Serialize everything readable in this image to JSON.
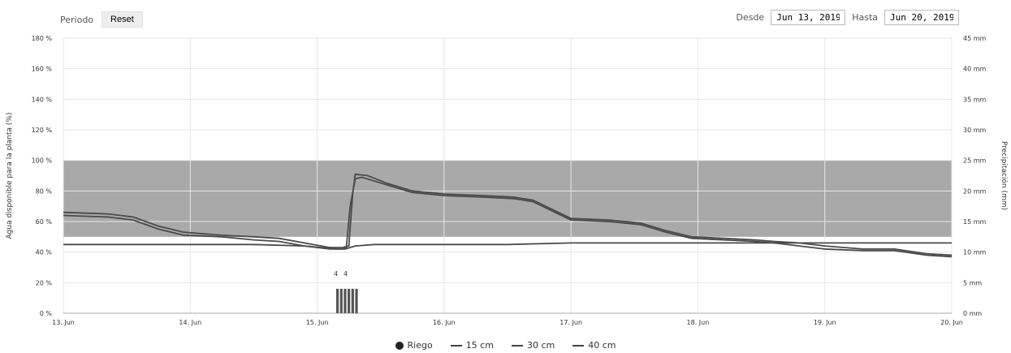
{
  "toolbar": {
    "period_label": "Periodo",
    "reset_label": "Reset",
    "from_label": "Desde",
    "from_value": "Jun 13, 2019",
    "to_label": "Hasta",
    "to_value": "Jun 20, 2019"
  },
  "legend": {
    "items": [
      {
        "label": "Riego",
        "symbol": "dot"
      },
      {
        "label": "15 cm",
        "symbol": "line"
      },
      {
        "label": "30 cm",
        "symbol": "line"
      },
      {
        "label": "40 cm",
        "symbol": "line"
      }
    ]
  },
  "colors": {
    "band": "#8c8c8c",
    "series": "#4a4a4a",
    "grid": "#e6e6e6",
    "bars": "#555555"
  },
  "chart_data": {
    "type": "line",
    "xlabel": "",
    "ylabel": "Agua disponible para la planta (%)",
    "y2label": "Precipitación (mm)",
    "x_ticks": [
      "13. Jun",
      "14. Jun",
      "15. Jun",
      "16. Jun",
      "17. Jun",
      "18. Jun",
      "19. Jun",
      "20. Jun"
    ],
    "y_ticks": [
      "0 %",
      "20 %",
      "40 %",
      "60 %",
      "80 %",
      "100 %",
      "120 %",
      "140 %",
      "160 %",
      "180 %"
    ],
    "y2_ticks": [
      "0 mm",
      "5 mm",
      "10 mm",
      "15 mm",
      "20 mm",
      "25 mm",
      "30 mm",
      "35 mm",
      "40 mm",
      "45 mm"
    ],
    "ylim": [
      0,
      180
    ],
    "y2lim": [
      0,
      45
    ],
    "xlim": [
      13,
      20
    ],
    "optimal_band": [
      50,
      100
    ],
    "grid": true,
    "legend_position": "bottom",
    "series": [
      {
        "name": "15 cm",
        "points": [
          [
            13.0,
            66
          ],
          [
            13.35,
            65
          ],
          [
            13.55,
            63
          ],
          [
            13.75,
            57
          ],
          [
            13.95,
            53
          ],
          [
            14.25,
            51
          ],
          [
            14.5,
            50
          ],
          [
            14.7,
            49
          ],
          [
            14.9,
            46
          ],
          [
            15.1,
            43
          ],
          [
            15.2,
            43
          ],
          [
            15.25,
            44
          ],
          [
            15.28,
            78
          ],
          [
            15.3,
            91
          ],
          [
            15.4,
            90
          ],
          [
            15.55,
            85
          ],
          [
            15.75,
            80
          ],
          [
            16.0,
            78
          ],
          [
            16.3,
            77
          ],
          [
            16.55,
            76
          ],
          [
            16.7,
            74
          ],
          [
            16.85,
            68
          ],
          [
            17.0,
            62
          ],
          [
            17.3,
            61
          ],
          [
            17.55,
            59
          ],
          [
            17.75,
            54
          ],
          [
            17.95,
            50
          ],
          [
            18.2,
            49
          ],
          [
            18.45,
            48
          ],
          [
            18.6,
            47
          ],
          [
            18.8,
            46
          ],
          [
            19.0,
            44
          ],
          [
            19.3,
            42
          ],
          [
            19.55,
            42
          ],
          [
            19.8,
            39
          ],
          [
            20.0,
            38
          ]
        ]
      },
      {
        "name": "30 cm",
        "points": [
          [
            13.0,
            64
          ],
          [
            13.35,
            63
          ],
          [
            13.55,
            61
          ],
          [
            13.75,
            55
          ],
          [
            13.95,
            51
          ],
          [
            14.25,
            50
          ],
          [
            14.5,
            48
          ],
          [
            14.7,
            47
          ],
          [
            14.9,
            44
          ],
          [
            15.1,
            42
          ],
          [
            15.2,
            42
          ],
          [
            15.23,
            43
          ],
          [
            15.26,
            70
          ],
          [
            15.3,
            88
          ],
          [
            15.35,
            89
          ],
          [
            15.55,
            84
          ],
          [
            15.75,
            79
          ],
          [
            16.0,
            77
          ],
          [
            16.3,
            76
          ],
          [
            16.55,
            75
          ],
          [
            16.7,
            73
          ],
          [
            16.85,
            67
          ],
          [
            17.0,
            61
          ],
          [
            17.3,
            60
          ],
          [
            17.55,
            58
          ],
          [
            17.75,
            53
          ],
          [
            17.95,
            49
          ],
          [
            18.2,
            48
          ],
          [
            18.45,
            47
          ],
          [
            18.6,
            46
          ],
          [
            18.8,
            44
          ],
          [
            19.0,
            42
          ],
          [
            19.3,
            41
          ],
          [
            19.55,
            41
          ],
          [
            19.8,
            38
          ],
          [
            20.0,
            37
          ]
        ]
      },
      {
        "name": "40 cm",
        "points": [
          [
            13.0,
            45
          ],
          [
            13.5,
            45
          ],
          [
            14.0,
            45
          ],
          [
            14.5,
            45
          ],
          [
            14.9,
            44
          ],
          [
            15.15,
            42
          ],
          [
            15.22,
            42
          ],
          [
            15.3,
            44
          ],
          [
            15.45,
            45
          ],
          [
            16.0,
            45
          ],
          [
            16.5,
            45
          ],
          [
            17.0,
            46
          ],
          [
            17.5,
            46
          ],
          [
            18.0,
            46
          ],
          [
            18.5,
            46
          ],
          [
            19.0,
            46
          ],
          [
            19.5,
            46
          ],
          [
            20.0,
            46
          ]
        ]
      }
    ],
    "riego": {
      "label_values": [
        "4",
        "4"
      ],
      "bars": [
        {
          "x": 15.16,
          "mm": 4
        },
        {
          "x": 15.19,
          "mm": 4
        },
        {
          "x": 15.22,
          "mm": 4
        },
        {
          "x": 15.25,
          "mm": 4
        },
        {
          "x": 15.28,
          "mm": 4
        },
        {
          "x": 15.31,
          "mm": 4
        }
      ]
    }
  }
}
